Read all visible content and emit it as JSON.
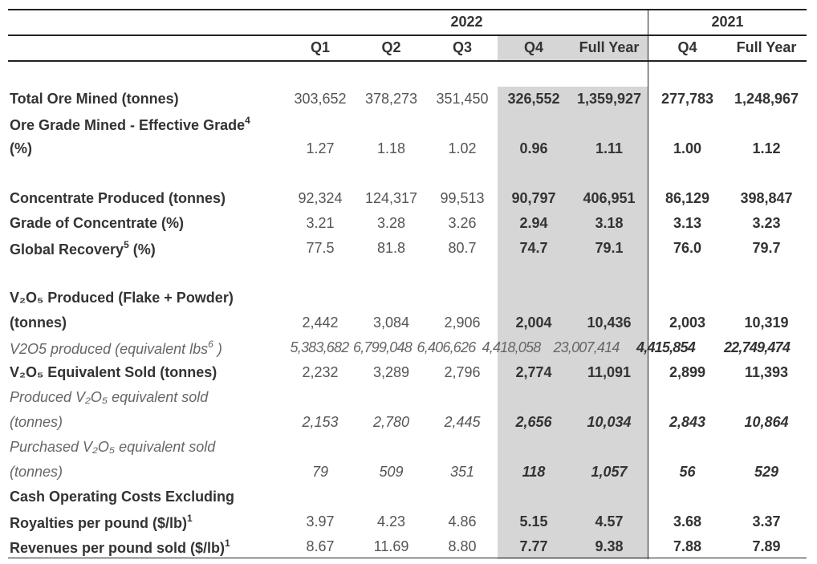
{
  "header": {
    "year_2022": "2022",
    "year_2021": "2021",
    "columns": [
      "Q1",
      "Q2",
      "Q3",
      "Q4",
      "Full Year",
      "Q4",
      "Full Year"
    ]
  },
  "rows": [
    {
      "label": "Total Ore Mined (tonnes)",
      "values": [
        "303,652",
        "378,273",
        "351,450",
        "326,552",
        "1,359,927",
        "277,783",
        "1,248,967"
      ],
      "style": "bold"
    },
    {
      "label": "Ore Grade Mined - Effective Grade",
      "sup": "4",
      "values": [],
      "style": "bold"
    },
    {
      "label": "(%)",
      "values": [
        "1.27",
        "1.18",
        "1.02",
        "0.96",
        "1.11",
        "1.00",
        "1.12"
      ],
      "style": "bold"
    },
    {
      "blank": true
    },
    {
      "label": "Concentrate Produced (tonnes)",
      "values": [
        "92,324",
        "124,317",
        "99,513",
        "90,797",
        "406,951",
        "86,129",
        "398,847"
      ],
      "style": "bold"
    },
    {
      "label": "Grade of Concentrate (%)",
      "values": [
        "3.21",
        "3.28",
        "3.26",
        "2.94",
        "3.18",
        "3.13",
        "3.23"
      ],
      "style": "bold"
    },
    {
      "label": "Global Recovery",
      "sup": "5",
      "label_suffix": " (%)",
      "values": [
        "77.5",
        "81.8",
        "80.7",
        "74.7",
        "79.1",
        "76.0",
        "79.7"
      ],
      "style": "bold"
    },
    {
      "blank": true
    },
    {
      "label": "V₂O₅ Produced (Flake + Powder)",
      "values": [],
      "style": "bold"
    },
    {
      "label": "(tonnes)",
      "values": [
        "2,442",
        "3,084",
        "2,906",
        "2,004",
        "10,436",
        "2,003",
        "10,319"
      ],
      "style": "bold"
    },
    {
      "label": "V2O5 produced (equivalent lbs",
      "sup": "6",
      "label_suffix": " )",
      "values": [
        "5,383,682",
        "6,799,048",
        "6,406,626",
        "4,418,058",
        "23,007,414",
        "4,415,854",
        "22,749,474"
      ],
      "style": "italic-lbs"
    },
    {
      "label": "V₂O₅ Equivalent Sold (tonnes)",
      "values": [
        "2,232",
        "3,289",
        "2,796",
        "2,774",
        "11,091",
        "2,899",
        "11,393"
      ],
      "style": "bold"
    },
    {
      "label": "Produced V₂O₅ equivalent sold",
      "values": [],
      "style": "italic"
    },
    {
      "label": "(tonnes)",
      "values": [
        "2,153",
        "2,780",
        "2,445",
        "2,656",
        "10,034",
        "2,843",
        "10,864"
      ],
      "style": "italic"
    },
    {
      "label": "Purchased V₂O₅ equivalent sold",
      "values": [],
      "style": "italic"
    },
    {
      "label": "(tonnes)",
      "values": [
        "79",
        "509",
        "351",
        "118",
        "1,057",
        "56",
        "529"
      ],
      "style": "italic"
    },
    {
      "label": "Cash Operating Costs Excluding",
      "values": [],
      "style": "bold"
    },
    {
      "label": "Royalties per pound ($/lb)",
      "sup": "1",
      "values": [
        "3.97",
        "4.23",
        "4.86",
        "5.15",
        "4.57",
        "3.68",
        "3.37"
      ],
      "style": "bold"
    },
    {
      "label": "Revenues per pound sold ($/lb)",
      "sup": "1",
      "values": [
        "8.67",
        "11.69",
        "8.80",
        "7.77",
        "9.38",
        "7.88",
        "7.89"
      ],
      "style": "bold"
    }
  ]
}
